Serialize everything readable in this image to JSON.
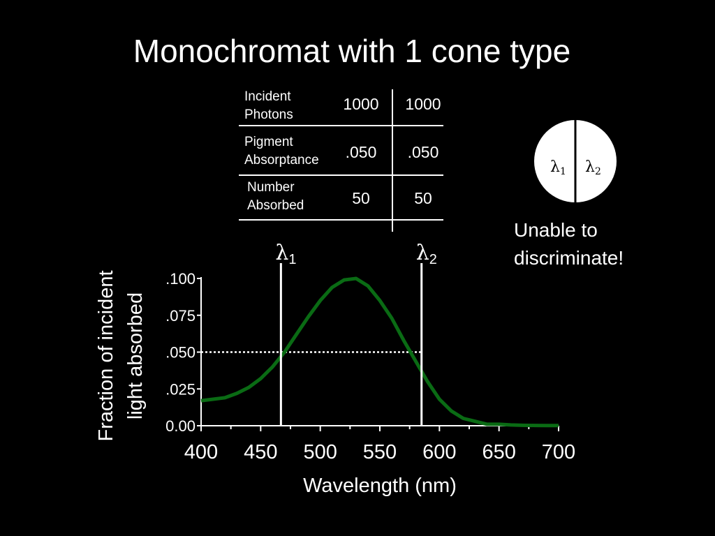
{
  "title": "Monochromat with 1 cone type",
  "table": {
    "rows": [
      {
        "label": "Incident\nPhotons",
        "values": [
          "1000",
          "1000"
        ]
      },
      {
        "label": "Pigment\nAbsorptance",
        "values": [
          ".050",
          ".050"
        ]
      },
      {
        "label": "Number\nAbsorbed",
        "values": [
          "50",
          "50"
        ]
      }
    ]
  },
  "discrimination": {
    "left": "λ",
    "left_sub": "1",
    "right": "λ",
    "right_sub": "2",
    "message": "Unable to\ndiscriminate!"
  },
  "chart_data": {
    "type": "line",
    "title": "",
    "xlabel": "Wavelength (nm)",
    "ylabel": "Fraction of incident light absorbed",
    "xlim": [
      400,
      700
    ],
    "ylim": [
      0,
      0.1
    ],
    "x_ticks": [
      "400",
      "450",
      "500",
      "550",
      "600",
      "650",
      "700"
    ],
    "y_ticks": [
      "0.00",
      ".025",
      ".050",
      ".075",
      ".100"
    ],
    "y_tick_values": [
      0,
      0.025,
      0.05,
      0.075,
      0.1
    ],
    "series": [
      {
        "color": "#0a6b14",
        "x": [
          400,
          410,
          420,
          430,
          440,
          450,
          460,
          470,
          480,
          490,
          500,
          510,
          520,
          530,
          540,
          550,
          560,
          570,
          580,
          590,
          600,
          610,
          620,
          630,
          640,
          650,
          660,
          670,
          680,
          690,
          700
        ],
        "y": [
          0.017,
          0.018,
          0.019,
          0.022,
          0.026,
          0.032,
          0.04,
          0.05,
          0.062,
          0.074,
          0.085,
          0.094,
          0.099,
          0.1,
          0.095,
          0.085,
          0.073,
          0.058,
          0.044,
          0.03,
          0.018,
          0.01,
          0.005,
          0.003,
          0.001,
          0.001,
          0.0005,
          0.0003,
          0.0002,
          0.0001,
          0.0001
        ]
      }
    ],
    "markers": [
      {
        "label": "λ",
        "sub": "1",
        "x": 467
      },
      {
        "label": "λ",
        "sub": "2",
        "x": 585
      }
    ],
    "reference_y": 0.05
  }
}
